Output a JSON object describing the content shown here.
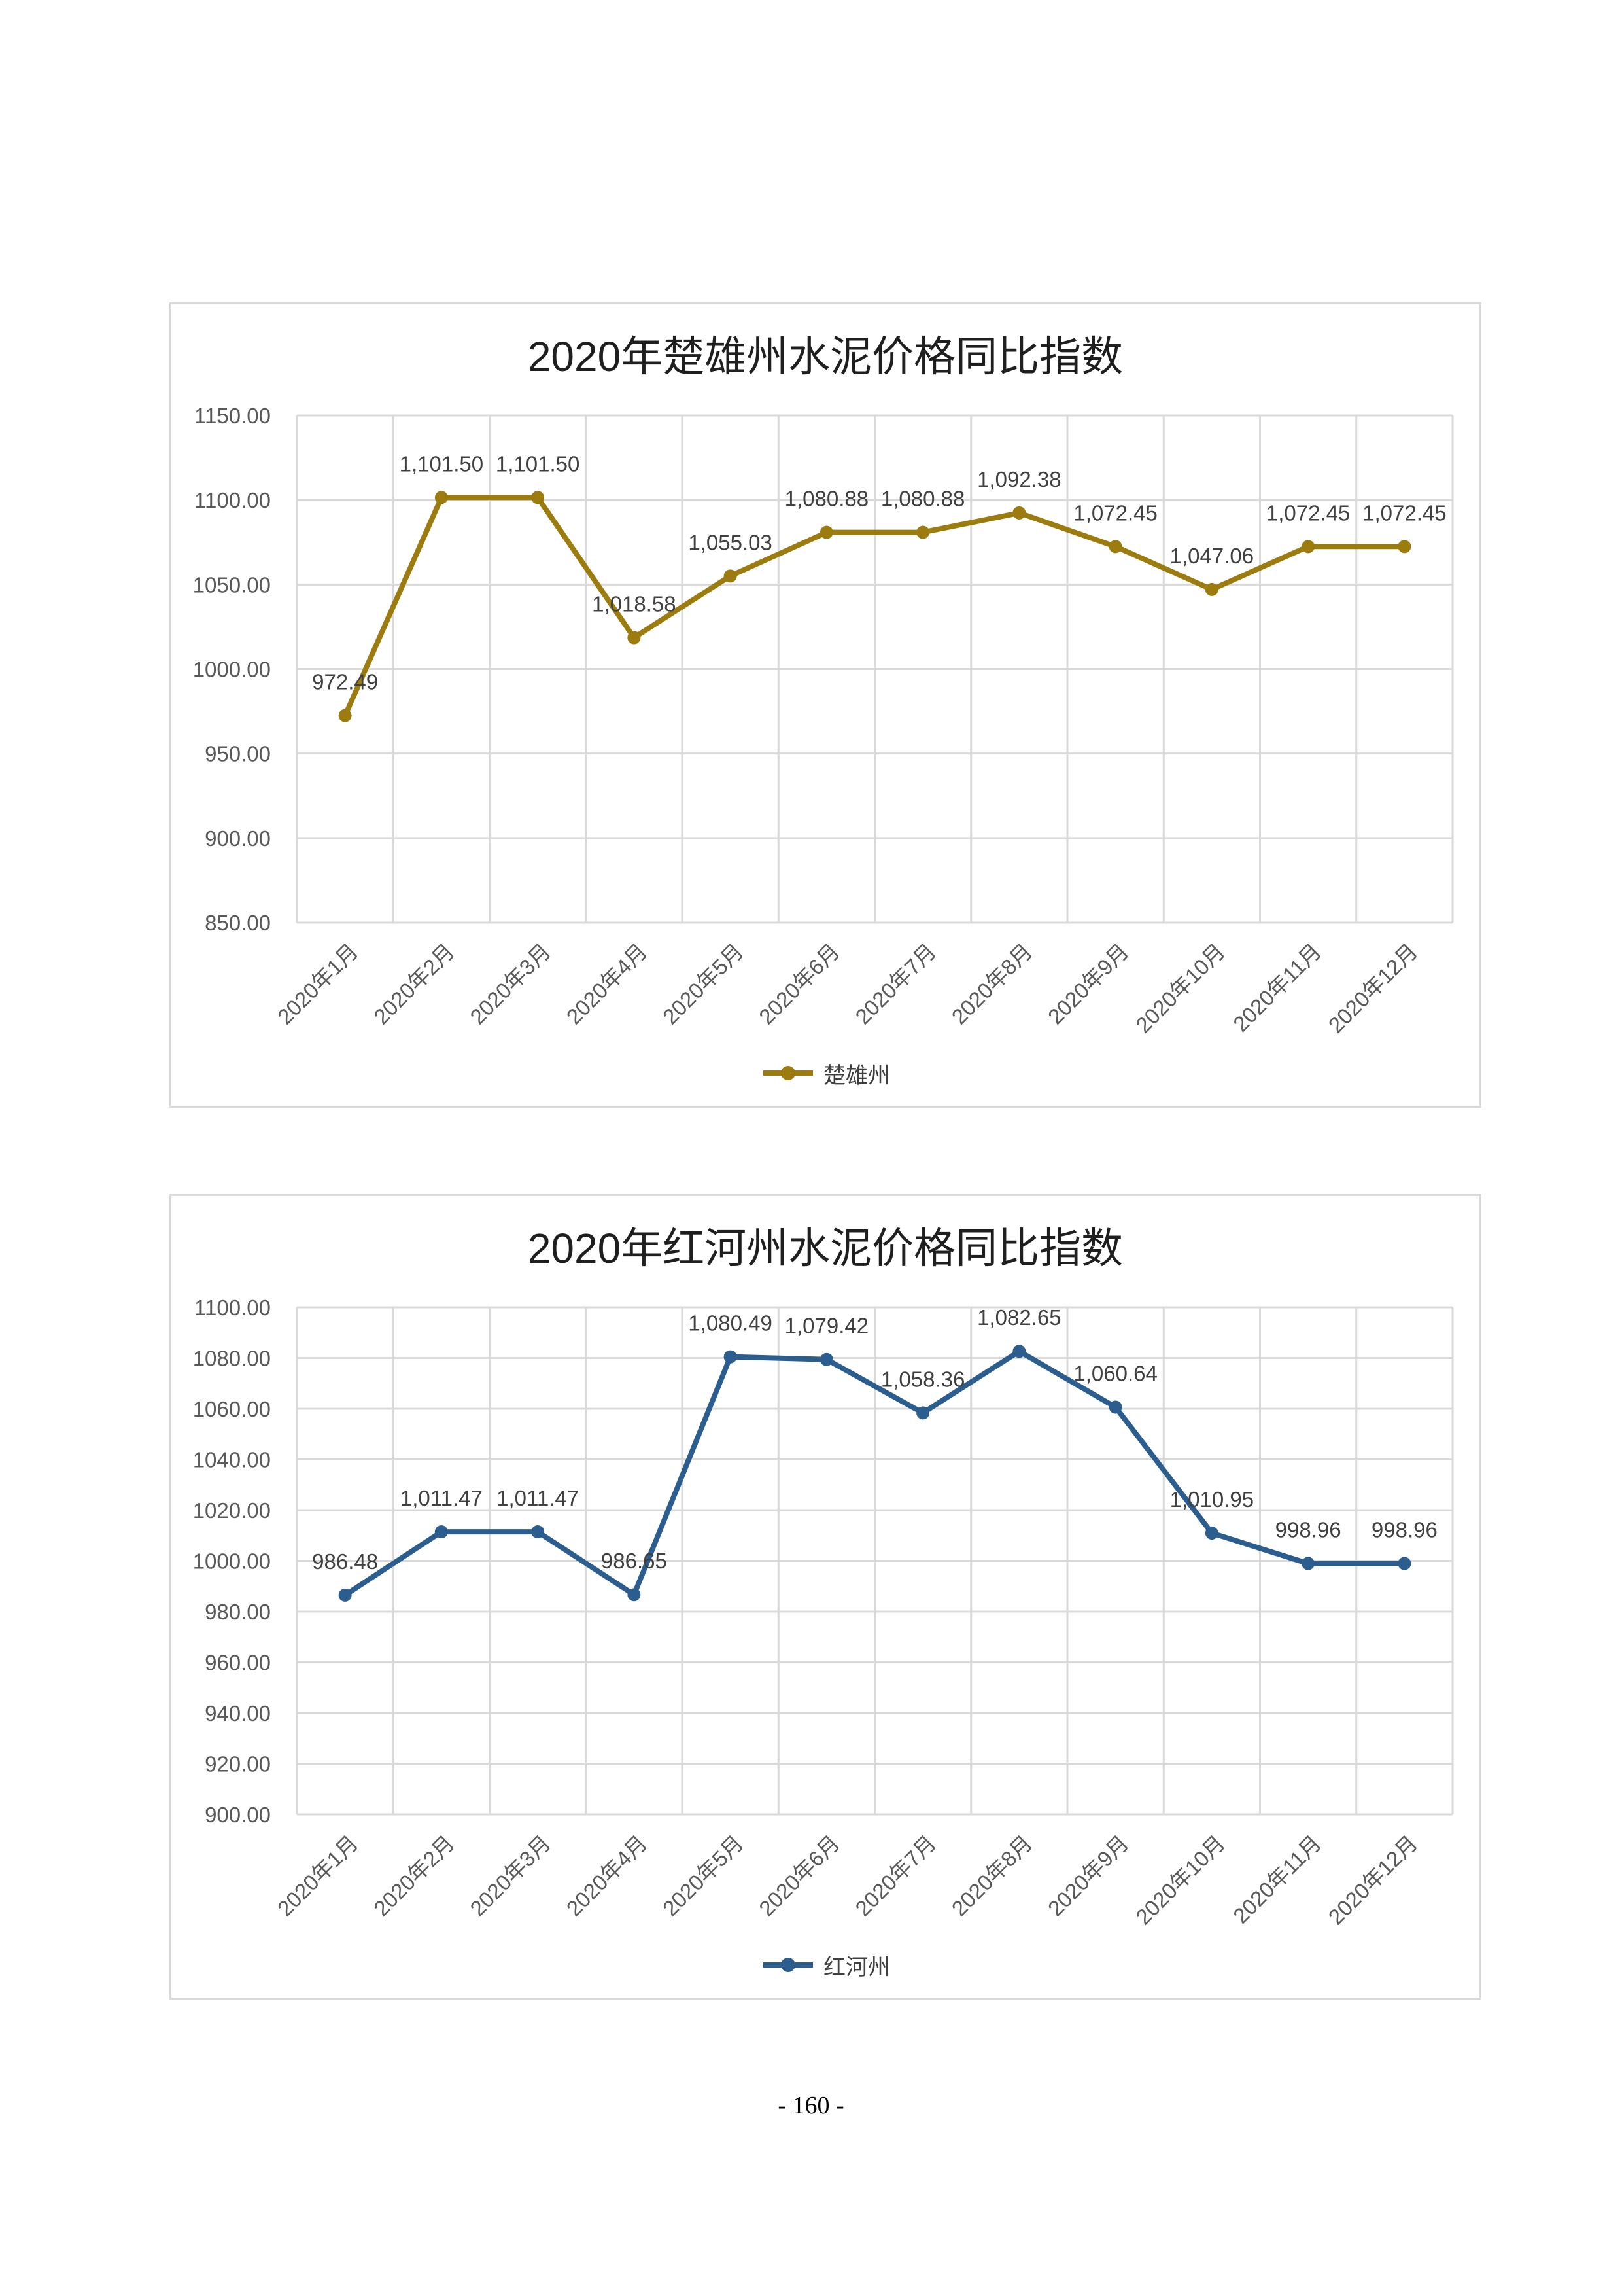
{
  "page_number": "- 160 -",
  "chart_data": [
    {
      "type": "line",
      "title": "2020年楚雄州水泥价格同比指数",
      "categories": [
        "2020年1月",
        "2020年2月",
        "2020年3月",
        "2020年4月",
        "2020年5月",
        "2020年6月",
        "2020年7月",
        "2020年8月",
        "2020年9月",
        "2020年10月",
        "2020年11月",
        "2020年12月"
      ],
      "series": [
        {
          "name": "楚雄州",
          "color": "#9C7C0E",
          "values": [
            972.49,
            1101.5,
            1101.5,
            1018.58,
            1055.03,
            1080.88,
            1080.88,
            1092.38,
            1072.45,
            1047.06,
            1072.45,
            1072.45
          ],
          "data_labels": [
            "972.49",
            "1,101.50",
            "1,101.50",
            "1,018.58",
            "1,055.03",
            "1,080.88",
            "1,080.88",
            "1,092.38",
            "1,072.45",
            "1,047.06",
            "1,072.45",
            "1,072.45"
          ]
        }
      ],
      "yticks": [
        "850.00",
        "900.00",
        "950.00",
        "1000.00",
        "1050.00",
        "1100.00",
        "1150.00"
      ],
      "ylim": [
        850,
        1150
      ],
      "grid": true,
      "legend": "bottom"
    },
    {
      "type": "line",
      "title": "2020年红河州水泥价格同比指数",
      "categories": [
        "2020年1月",
        "2020年2月",
        "2020年3月",
        "2020年4月",
        "2020年5月",
        "2020年6月",
        "2020年7月",
        "2020年8月",
        "2020年9月",
        "2020年10月",
        "2020年11月",
        "2020年12月"
      ],
      "series": [
        {
          "name": "红河州",
          "color": "#2B5E8E",
          "values": [
            986.48,
            1011.47,
            1011.47,
            986.65,
            1080.49,
            1079.42,
            1058.36,
            1082.65,
            1060.64,
            1010.95,
            998.96,
            998.96
          ],
          "data_labels": [
            "986.48",
            "1,011.47",
            "1,011.47",
            "986.65",
            "1,080.49",
            "1,079.42",
            "1,058.36",
            "1,082.65",
            "1,060.64",
            "1,010.95",
            "998.96",
            "998.96"
          ]
        }
      ],
      "yticks": [
        "900.00",
        "920.00",
        "940.00",
        "960.00",
        "980.00",
        "1000.00",
        "1020.00",
        "1040.00",
        "1060.00",
        "1080.00",
        "1100.00"
      ],
      "ylim": [
        900,
        1100
      ],
      "grid": true,
      "legend": "bottom"
    }
  ]
}
